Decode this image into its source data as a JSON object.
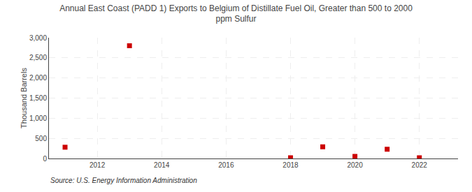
{
  "chart_data": {
    "type": "scatter",
    "title": "Annual East Coast (PADD 1) Exports to Belgium of Distillate Fuel Oil, Greater than 500 to 2000\nppm Sulfur",
    "ylabel": "Thousand Barrels",
    "x": [
      2011,
      2013,
      2018,
      2019,
      2020,
      2021,
      2022
    ],
    "values": [
      280,
      2800,
      18,
      290,
      52,
      230,
      18
    ],
    "color": "#cc0000",
    "marker": "square",
    "xlim": [
      2010.5,
      2023.2
    ],
    "ylim": [
      0,
      3000
    ],
    "xticks": [
      2012,
      2014,
      2016,
      2018,
      2020,
      2022
    ],
    "yticks": [
      0,
      500,
      {
        "value": 1000,
        "label": "1,000"
      },
      {
        "value": 1500,
        "label": "1,500"
      },
      {
        "value": 2000,
        "label": "2,000"
      },
      {
        "value": 2500,
        "label": "2,500"
      },
      {
        "value": 3000,
        "label": "3,000"
      }
    ],
    "grid": true,
    "annotations": [
      "Source: U.S. Energy Information Administration"
    ]
  }
}
